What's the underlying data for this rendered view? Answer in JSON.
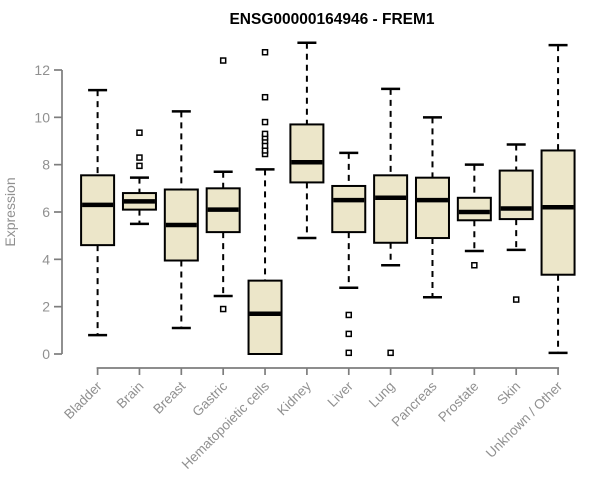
{
  "page": {
    "background": "#ffffff"
  },
  "chart_data": {
    "type": "boxplot",
    "title": "ENSG00000164946 - FREM1",
    "ylabel": "Expression",
    "xlabel": "",
    "ylim": [
      0,
      13.2
    ],
    "yticks": [
      0,
      2,
      4,
      6,
      8,
      10,
      12
    ],
    "grid": false,
    "legend": false,
    "categories": [
      "Bladder",
      "Brain",
      "Breast",
      "Gastric",
      "Hematopoietic cells",
      "Kidney",
      "Liver",
      "Lung",
      "Pancreas",
      "Prostate",
      "Skin",
      "Unknown / Other"
    ],
    "series": [
      {
        "category": "Bladder",
        "min": 0.8,
        "q1": 4.6,
        "median": 6.3,
        "q3": 7.55,
        "max": 11.15,
        "outliers": []
      },
      {
        "category": "Brain",
        "min": 5.5,
        "q1": 6.1,
        "median": 6.45,
        "q3": 6.8,
        "max": 7.45,
        "outliers": [
          7.95,
          8.3,
          9.35
        ]
      },
      {
        "category": "Breast",
        "min": 1.1,
        "q1": 3.95,
        "median": 5.45,
        "q3": 6.95,
        "max": 10.25,
        "outliers": []
      },
      {
        "category": "Gastric",
        "min": 2.45,
        "q1": 5.15,
        "median": 6.1,
        "q3": 7.0,
        "max": 7.7,
        "outliers": [
          1.9,
          12.4
        ]
      },
      {
        "category": "Hematopoietic cells",
        "min": 0.0,
        "q1": 0.0,
        "median": 1.7,
        "q3": 3.1,
        "max": 7.8,
        "outliers": [
          8.45,
          8.6,
          8.8,
          9.0,
          9.15,
          9.3,
          9.8,
          10.85,
          12.75
        ]
      },
      {
        "category": "Kidney",
        "min": 4.9,
        "q1": 7.25,
        "median": 8.1,
        "q3": 9.7,
        "max": 13.15,
        "outliers": []
      },
      {
        "category": "Liver",
        "min": 2.8,
        "q1": 5.15,
        "median": 6.5,
        "q3": 7.1,
        "max": 8.5,
        "outliers": [
          1.65,
          0.85,
          0.05
        ]
      },
      {
        "category": "Lung",
        "min": 3.75,
        "q1": 4.7,
        "median": 6.6,
        "q3": 7.55,
        "max": 11.2,
        "outliers": [
          0.05
        ]
      },
      {
        "category": "Pancreas",
        "min": 2.4,
        "q1": 4.9,
        "median": 6.5,
        "q3": 7.45,
        "max": 10.0,
        "outliers": []
      },
      {
        "category": "Prostate",
        "min": 4.35,
        "q1": 5.65,
        "median": 6.0,
        "q3": 6.6,
        "max": 8.0,
        "outliers": [
          3.75
        ]
      },
      {
        "category": "Skin",
        "min": 4.4,
        "q1": 5.7,
        "median": 6.15,
        "q3": 7.75,
        "max": 8.85,
        "outliers": [
          2.3
        ]
      },
      {
        "category": "Unknown / Other",
        "min": 0.05,
        "q1": 3.35,
        "median": 6.2,
        "q3": 8.6,
        "max": 13.05,
        "outliers": []
      }
    ],
    "colors": {
      "box_fill": "#ece6c9",
      "box_border": "#000000",
      "median": "#000000",
      "whisker": "#000000",
      "outlier_stroke": "#000000",
      "outlier_fill": "#ffffff",
      "axis": "#7d7d7d",
      "tick_label": "#909090",
      "title": "#000000"
    }
  }
}
